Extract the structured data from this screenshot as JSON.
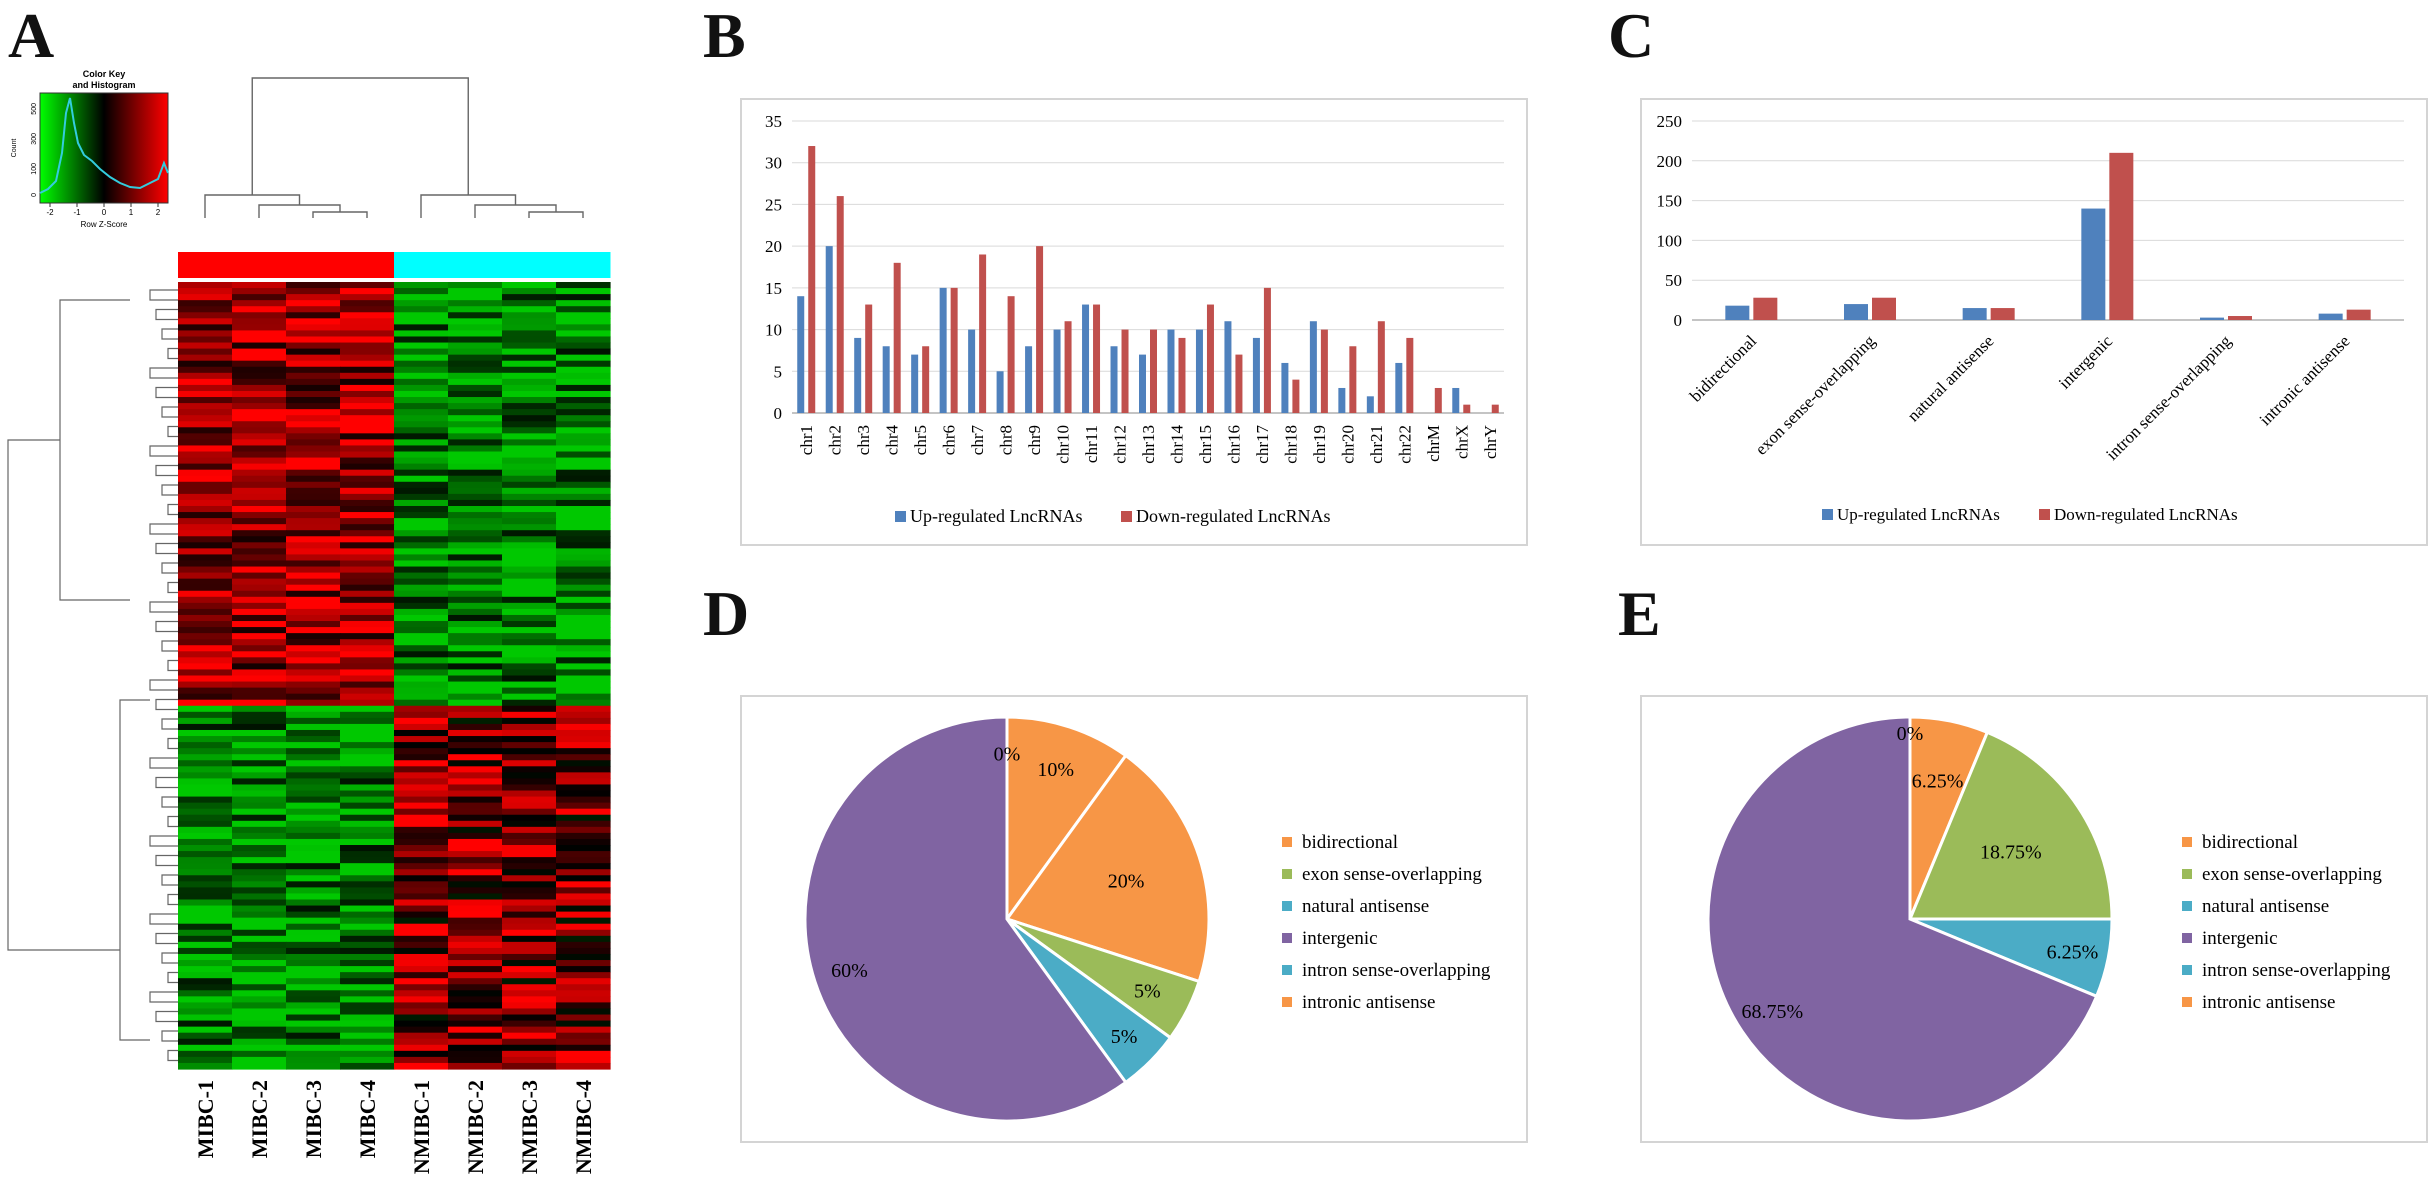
{
  "panel_letters": {
    "a": "A",
    "b": "B",
    "c": "C",
    "d": "D",
    "e": "E"
  },
  "colors": {
    "up": "#4f81bd",
    "down": "#c0504d",
    "bidirectional": "#f79646",
    "exon": "#9bbb59",
    "natural": "#4bacc6",
    "intergenic": "#8064a2",
    "intron": "#4bacc6",
    "intronic": "#f79646",
    "mibc_bar": "#ff0000",
    "nmibc_bar": "#00ffff"
  },
  "chart_data": [
    {
      "type": "heatmap",
      "panel": "A",
      "title": "",
      "samples": [
        "MIBC-1",
        "MIBC-2",
        "MIBC-3",
        "MIBC-4",
        "NMIBC-1",
        "NMIBC-2",
        "NMIBC-3",
        "NMIBC-4"
      ],
      "groups": [
        "MIBC",
        "MIBC",
        "MIBC",
        "MIBC",
        "NMIBC",
        "NMIBC",
        "NMIBC",
        "NMIBC"
      ],
      "color_key": {
        "title_line1": "Color Key",
        "title_line2": "and Histogram",
        "xlabel": "Row Z-Score",
        "ylabel": "Count",
        "xticks": [
          "-2",
          "-1",
          "0",
          "1",
          "2"
        ],
        "yticks": [
          "0",
          "100",
          "300",
          "500"
        ]
      }
    },
    {
      "type": "bar",
      "panel": "B",
      "categories": [
        "chr1",
        "chr2",
        "chr3",
        "chr4",
        "chr5",
        "chr6",
        "chr7",
        "chr8",
        "chr9",
        "chr10",
        "chr11",
        "chr12",
        "chr13",
        "chr14",
        "chr15",
        "chr16",
        "chr17",
        "chr18",
        "chr19",
        "chr20",
        "chr21",
        "chr22",
        "chrM",
        "chrX",
        "chrY"
      ],
      "series": [
        {
          "name": "Up-regulated LncRNAs",
          "values": [
            14,
            20,
            9,
            8,
            7,
            15,
            10,
            5,
            8,
            10,
            13,
            8,
            7,
            10,
            10,
            11,
            9,
            6,
            11,
            3,
            2,
            6,
            0,
            3,
            0
          ]
        },
        {
          "name": "Down-regulated LncRNAs",
          "values": [
            32,
            26,
            13,
            18,
            8,
            15,
            19,
            14,
            20,
            11,
            13,
            10,
            10,
            9,
            13,
            7,
            15,
            4,
            10,
            8,
            11,
            9,
            3,
            1,
            1
          ]
        }
      ],
      "ylim": [
        0,
        35
      ],
      "yticks": [
        0,
        5,
        10,
        15,
        20,
        25,
        30,
        35
      ],
      "grid": true,
      "legend": "bottom"
    },
    {
      "type": "bar",
      "panel": "C",
      "categories": [
        "bidirectional",
        "exon sense-overlapping",
        "natural antisense",
        "intergenic",
        "intron sense-overlapping",
        "intronic antisense"
      ],
      "series": [
        {
          "name": "Up-regulated LncRNAs",
          "values": [
            18,
            20,
            15,
            140,
            3,
            8
          ]
        },
        {
          "name": "Down-regulated LncRNAs",
          "values": [
            28,
            28,
            15,
            210,
            5,
            13
          ]
        }
      ],
      "ylim": [
        0,
        250
      ],
      "yticks": [
        0,
        50,
        100,
        150,
        200,
        250
      ],
      "grid": true,
      "legend": "bottom"
    },
    {
      "type": "pie",
      "panel": "D",
      "legend": [
        "bidirectional",
        "exon  sense-overlapping",
        "natural antisense",
        "intergenic",
        "intron sense-overlapping",
        "intronic antisense"
      ],
      "slices": [
        {
          "name": "bidirectional",
          "value": 10,
          "label": "10%"
        },
        {
          "name": "intronic antisense",
          "value": 20,
          "label": "20%"
        },
        {
          "name": "exon sense-overlapping",
          "value": 5,
          "label": "5%"
        },
        {
          "name": "natural antisense",
          "value": 5,
          "label": "5%"
        },
        {
          "name": "intergenic",
          "value": 60,
          "label": "60%"
        },
        {
          "name": "intron sense-overlapping",
          "value": 0,
          "label": "0%"
        }
      ]
    },
    {
      "type": "pie",
      "panel": "E",
      "legend": [
        "bidirectional",
        "exon  sense-overlapping",
        "natural antisense",
        "intergenic",
        "intron sense-overlapping",
        "intronic antisense"
      ],
      "slices": [
        {
          "name": "bidirectional",
          "value": 6.25,
          "label": "6.25%"
        },
        {
          "name": "exon sense-overlapping",
          "value": 18.75,
          "label": "18.75%"
        },
        {
          "name": "natural antisense",
          "value": 6.25,
          "label": "6.25%"
        },
        {
          "name": "intergenic",
          "value": 68.75,
          "label": "68.75%"
        },
        {
          "name": "intron sense-overlapping",
          "value": 0,
          "label": "0%"
        }
      ]
    }
  ]
}
